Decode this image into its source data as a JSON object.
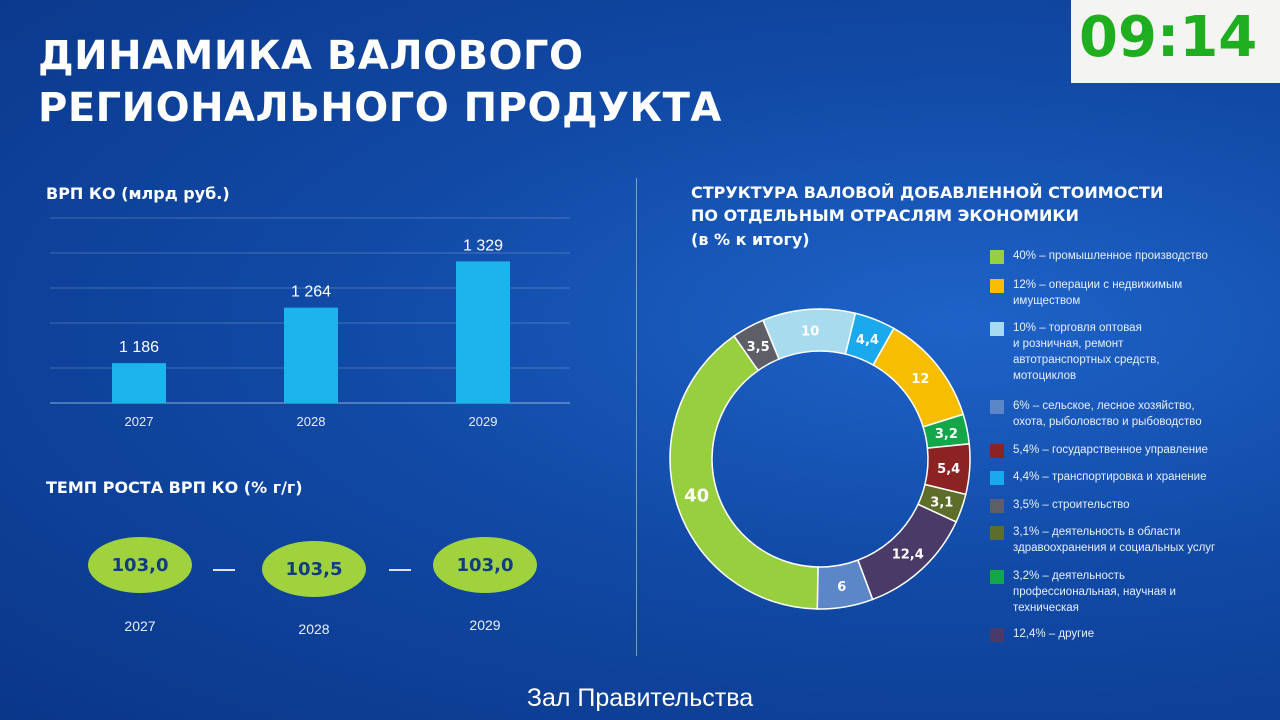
{
  "title": "Динамика валового\nрегионального продукта",
  "clock": "09:14",
  "caption": "Зал Правительства",
  "bar_section_title": "ВРП КО (млрд руб.)",
  "growth_section_title": "ТЕМП РОСТА ВРП КО (% г/г)",
  "donut_section_title_line1": "СТРУКТУРА ВАЛОВОЙ ДОБАВЛЕННОЙ СТОИМОСТИ",
  "donut_section_title_line2": "ПО ОТДЕЛЬНЫМ ОТРАСЛЯМ ЭКОНОМИКИ",
  "donut_section_title_line3": "(в % к итогу)",
  "growth": [
    {
      "value": "103,0",
      "year": "2027"
    },
    {
      "value": "103,5",
      "year": "2028"
    },
    {
      "value": "103,0",
      "year": "2029"
    }
  ],
  "colors": {
    "bar": "#1db4ee",
    "pill": "#9fd23c"
  },
  "chart_data": [
    {
      "type": "bar",
      "title": "ВРП КО (млрд руб.)",
      "categories": [
        "2027",
        "2028",
        "2029"
      ],
      "values": [
        1186,
        1264,
        1329
      ],
      "value_labels": [
        "1 186",
        "1 264",
        "1 329"
      ],
      "grid": true
    },
    {
      "type": "pie",
      "donut": true,
      "title": "СТРУКТУРА ВАЛОВОЙ ДОБАВЛЕННОЙ СТОИМОСТИ ПО ОТДЕЛЬНЫМ ОТРАСЛЯМ ЭКОНОМИКИ (в % к итогу)",
      "legend_position": "right",
      "slices": [
        {
          "value": 10,
          "label": "10",
          "color": "#a8dbee",
          "text_color": "#ffffff",
          "legend": "10% – торговля оптовая\nи розничная, ремонт\nавтотранспортных средств,\nмотоциклов"
        },
        {
          "value": 4.4,
          "label": "4,4",
          "color": "#1aa9ec",
          "text_color": "#ffffff",
          "legend": "4,4% – транспортировка и хранение"
        },
        {
          "value": 12,
          "label": "12",
          "color": "#f7bd00",
          "text_color": "#ffffff",
          "legend": "12% – операции с недвижимым\nимуществом"
        },
        {
          "value": 3.2,
          "label": "3,2",
          "color": "#12a84a",
          "text_color": "#ffffff",
          "legend": "3,2% – деятельность\nпрофессиональная, научная и\nтехническая"
        },
        {
          "value": 5.4,
          "label": "5,4",
          "color": "#8b2323",
          "text_color": "#ffffff",
          "legend": "5,4% – государственное управление"
        },
        {
          "value": 3.1,
          "label": "3,1",
          "color": "#5c6e2a",
          "text_color": "#ffffff",
          "legend": "3,1% – деятельность в области\nздравоохранения и социальных услуг"
        },
        {
          "value": 12.4,
          "label": "12,4",
          "color": "#4a3a67",
          "text_color": "#ffffff",
          "legend": "12,4% – другие"
        },
        {
          "value": 6,
          "label": "6",
          "color": "#5b86c8",
          "text_color": "#ffffff",
          "legend": "6% – сельское, лесное хозяйство,\nохота, рыболовство и рыбоводство"
        },
        {
          "value": 40,
          "label": "40",
          "color": "#97cf3e",
          "text_color": "#ffffff",
          "legend": "40% – промышленное производство"
        },
        {
          "value": 3.5,
          "label": "3,5",
          "color": "#5d5e66",
          "text_color": "#ffffff",
          "legend": "3,5% – строительство"
        }
      ],
      "legend_order": [
        8,
        2,
        0,
        7,
        4,
        1,
        9,
        5,
        3,
        6
      ]
    }
  ]
}
